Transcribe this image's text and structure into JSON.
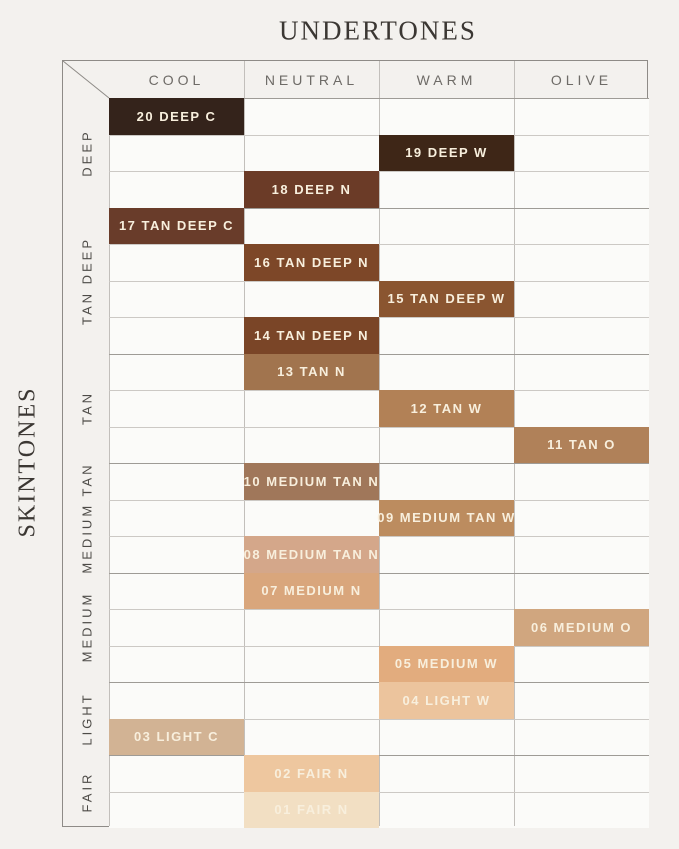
{
  "title": "UNDERTONES",
  "side_title": "SKINTONES",
  "columns": [
    "COOL",
    "NEUTRAL",
    "WARM",
    "OLIVE"
  ],
  "row_groups": [
    {
      "label": "DEEP",
      "rows": 3
    },
    {
      "label": "TAN DEEP",
      "rows": 4
    },
    {
      "label": "TAN",
      "rows": 3
    },
    {
      "label": "MEDIUM TAN",
      "rows": 3
    },
    {
      "label": "MEDIUM",
      "rows": 3
    },
    {
      "label": "LIGHT",
      "rows": 2
    },
    {
      "label": "FAIR",
      "rows": 2
    }
  ],
  "shades": [
    {
      "label": "20 DEEP C",
      "row": 0,
      "undertone": "COOL",
      "skintone": "DEEP",
      "color": "#34231b"
    },
    {
      "label": "19 DEEP W",
      "row": 1,
      "undertone": "WARM",
      "skintone": "DEEP",
      "color": "#3e2617"
    },
    {
      "label": "18 DEEP N",
      "row": 2,
      "undertone": "NEUTRAL",
      "skintone": "DEEP",
      "color": "#6b3b27"
    },
    {
      "label": "17 TAN DEEP C",
      "row": 3,
      "undertone": "COOL",
      "skintone": "TAN DEEP",
      "color": "#693c2a"
    },
    {
      "label": "16 TAN DEEP N",
      "row": 4,
      "undertone": "NEUTRAL",
      "skintone": "TAN DEEP",
      "color": "#7d4728"
    },
    {
      "label": "15 TAN DEEP W",
      "row": 5,
      "undertone": "WARM",
      "skintone": "TAN DEEP",
      "color": "#8a5530"
    },
    {
      "label": "14 TAN DEEP N",
      "row": 6,
      "undertone": "NEUTRAL",
      "skintone": "TAN DEEP",
      "color": "#7a4527"
    },
    {
      "label": "13 TAN N",
      "row": 7,
      "undertone": "NEUTRAL",
      "skintone": "TAN",
      "color": "#a1744e"
    },
    {
      "label": "12 TAN W",
      "row": 8,
      "undertone": "WARM",
      "skintone": "TAN",
      "color": "#b28156"
    },
    {
      "label": "11 TAN O",
      "row": 9,
      "undertone": "OLIVE",
      "skintone": "TAN",
      "color": "#b08159"
    },
    {
      "label": "10 MEDIUM TAN N",
      "row": 10,
      "undertone": "NEUTRAL",
      "skintone": "MEDIUM TAN",
      "color": "#a0775a"
    },
    {
      "label": "09 MEDIUM TAN W",
      "row": 11,
      "undertone": "WARM",
      "skintone": "MEDIUM TAN",
      "color": "#bc8c5f"
    },
    {
      "label": "08 MEDIUM TAN N",
      "row": 12,
      "undertone": "NEUTRAL",
      "skintone": "MEDIUM TAN",
      "color": "#d4a78a"
    },
    {
      "label": "07 MEDIUM N",
      "row": 13,
      "undertone": "NEUTRAL",
      "skintone": "MEDIUM",
      "color": "#d9a67c"
    },
    {
      "label": "06 MEDIUM O",
      "row": 14,
      "undertone": "OLIVE",
      "skintone": "MEDIUM",
      "color": "#d0a67f"
    },
    {
      "label": "05 MEDIUM W",
      "row": 15,
      "undertone": "WARM",
      "skintone": "MEDIUM",
      "color": "#e2ac7e"
    },
    {
      "label": "04 LIGHT W",
      "row": 16,
      "undertone": "WARM",
      "skintone": "LIGHT",
      "color": "#ecc49d"
    },
    {
      "label": "03 LIGHT C",
      "row": 17,
      "undertone": "COOL",
      "skintone": "LIGHT",
      "color": "#d2b394"
    },
    {
      "label": "02 FAIR N",
      "row": 18,
      "undertone": "NEUTRAL",
      "skintone": "FAIR",
      "color": "#eec79f"
    },
    {
      "label": "01 FAIR N",
      "row": 19,
      "undertone": "NEUTRAL",
      "skintone": "FAIR",
      "color": "#f2dfc3"
    }
  ],
  "colors": {
    "page_bg": "#f3f1ee",
    "cell_bg": "#fbfbf9",
    "grid_line": "#ccc9c5",
    "group_line": "#9e9b96",
    "border": "#8e8b87",
    "title_text": "#3b3733",
    "header_text": "#6e6b67",
    "group_label_text": "#4d4b47",
    "shade_text": "#f8efdd"
  },
  "chart_data": {
    "type": "heatmap",
    "title": "UNDERTONES",
    "xlabel": "UNDERTONES",
    "ylabel": "SKINTONES",
    "x_categories": [
      "COOL",
      "NEUTRAL",
      "WARM",
      "OLIVE"
    ],
    "y_categories": [
      "DEEP",
      "TAN DEEP",
      "TAN",
      "MEDIUM TAN",
      "MEDIUM",
      "LIGHT",
      "FAIR"
    ],
    "cells": [
      {
        "shade": "20 DEEP C",
        "x": "COOL",
        "y": "DEEP",
        "color": "#34231b"
      },
      {
        "shade": "19 DEEP W",
        "x": "WARM",
        "y": "DEEP",
        "color": "#3e2617"
      },
      {
        "shade": "18 DEEP N",
        "x": "NEUTRAL",
        "y": "DEEP",
        "color": "#6b3b27"
      },
      {
        "shade": "17 TAN DEEP C",
        "x": "COOL",
        "y": "TAN DEEP",
        "color": "#693c2a"
      },
      {
        "shade": "16 TAN DEEP N",
        "x": "NEUTRAL",
        "y": "TAN DEEP",
        "color": "#7d4728"
      },
      {
        "shade": "15 TAN DEEP W",
        "x": "WARM",
        "y": "TAN DEEP",
        "color": "#8a5530"
      },
      {
        "shade": "14 TAN DEEP N",
        "x": "NEUTRAL",
        "y": "TAN DEEP",
        "color": "#7a4527"
      },
      {
        "shade": "13 TAN N",
        "x": "NEUTRAL",
        "y": "TAN",
        "color": "#a1744e"
      },
      {
        "shade": "12 TAN W",
        "x": "WARM",
        "y": "TAN",
        "color": "#b28156"
      },
      {
        "shade": "11 TAN O",
        "x": "OLIVE",
        "y": "TAN",
        "color": "#b08159"
      },
      {
        "shade": "10 MEDIUM TAN N",
        "x": "NEUTRAL",
        "y": "MEDIUM TAN",
        "color": "#a0775a"
      },
      {
        "shade": "09 MEDIUM TAN W",
        "x": "WARM",
        "y": "MEDIUM TAN",
        "color": "#bc8c5f"
      },
      {
        "shade": "08 MEDIUM TAN N",
        "x": "NEUTRAL",
        "y": "MEDIUM TAN",
        "color": "#d4a78a"
      },
      {
        "shade": "07 MEDIUM N",
        "x": "NEUTRAL",
        "y": "MEDIUM",
        "color": "#d9a67c"
      },
      {
        "shade": "06 MEDIUM O",
        "x": "OLIVE",
        "y": "MEDIUM",
        "color": "#d0a67f"
      },
      {
        "shade": "05 MEDIUM W",
        "x": "WARM",
        "y": "MEDIUM",
        "color": "#e2ac7e"
      },
      {
        "shade": "04 LIGHT W",
        "x": "WARM",
        "y": "LIGHT",
        "color": "#ecc49d"
      },
      {
        "shade": "03 LIGHT C",
        "x": "COOL",
        "y": "LIGHT",
        "color": "#d2b394"
      },
      {
        "shade": "02 FAIR N",
        "x": "NEUTRAL",
        "y": "FAIR",
        "color": "#eec79f"
      },
      {
        "shade": "01 FAIR N",
        "x": "NEUTRAL",
        "y": "FAIR",
        "color": "#f2dfc3"
      }
    ]
  }
}
